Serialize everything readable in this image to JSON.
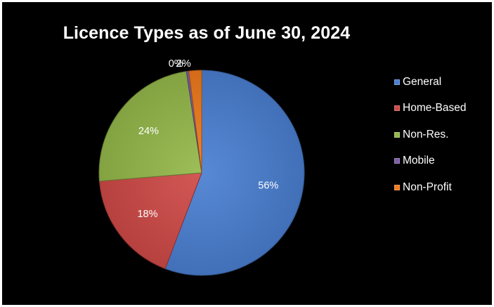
{
  "chart_data": {
    "type": "pie",
    "title": "Licence Types as of June 30, 2024",
    "categories": [
      "General",
      "Home-Based",
      "Non-Res.",
      "Mobile",
      "Non-Profit"
    ],
    "values": [
      56,
      18,
      24,
      0,
      2
    ],
    "data_labels": [
      "56%",
      "18%",
      "24%",
      "0%",
      "2%"
    ],
    "colors": [
      "#4a7fd1",
      "#cf4a47",
      "#95b84a",
      "#7b5ea6",
      "#f07a1c"
    ],
    "start_angle_deg": 0,
    "direction": "clockwise",
    "legend_position": "right"
  }
}
